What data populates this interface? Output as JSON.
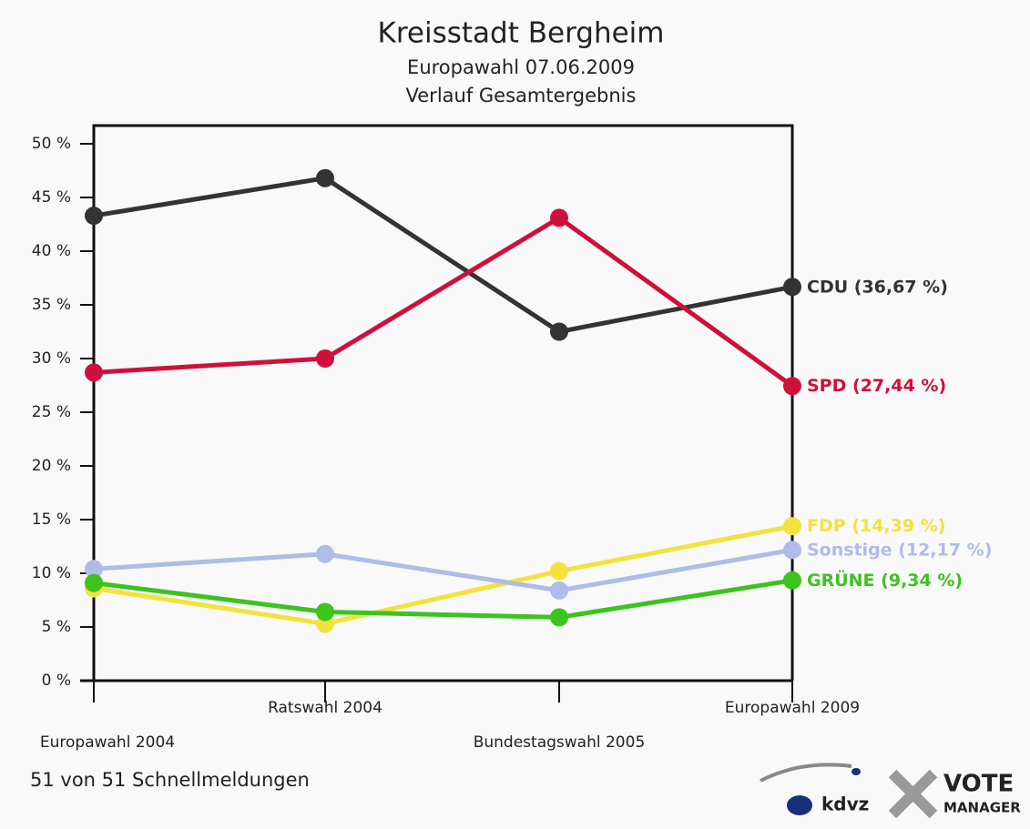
{
  "chart_data": {
    "type": "line",
    "title": "Kreisstadt Bergheim",
    "subtitle": "Europawahl 07.06.2009",
    "subtitle2": "Verlauf Gesamtergebnis",
    "categories": [
      "Europawahl 2004",
      "Ratswahl 2004",
      "Bundestagswahl 2005",
      "Europawahl 2009"
    ],
    "series": [
      {
        "name": "CDU",
        "color": "#333333",
        "values": [
          43.3,
          46.8,
          32.5,
          36.67
        ],
        "value_labels": [
          null,
          null,
          null,
          "(36,67 %)"
        ]
      },
      {
        "name": "SPD",
        "color": "#d0103a",
        "values": [
          28.7,
          30.0,
          43.1,
          27.44
        ],
        "value_labels": [
          null,
          null,
          null,
          "(27,44 %)"
        ]
      },
      {
        "name": "FDP",
        "color": "#f3e23c",
        "values": [
          8.6,
          5.3,
          10.2,
          14.39
        ],
        "value_labels": [
          null,
          null,
          null,
          "(14,39 %)"
        ]
      },
      {
        "name": "Sonstige",
        "color": "#aebde8",
        "values": [
          10.4,
          11.8,
          8.4,
          12.17
        ],
        "value_labels": [
          null,
          null,
          null,
          "(12,17 %)"
        ]
      },
      {
        "name": "GRÜNE",
        "color": "#3cc31e",
        "values": [
          9.1,
          6.4,
          5.9,
          9.34
        ],
        "value_labels": [
          null,
          null,
          null,
          "(9,34 %)"
        ]
      }
    ],
    "ylim": [
      0,
      50
    ],
    "yticks": [
      {
        "value": 0,
        "label": "0 %"
      },
      {
        "value": 5,
        "label": "5 %"
      },
      {
        "value": 10,
        "label": "10 %"
      },
      {
        "value": 15,
        "label": "15 %"
      },
      {
        "value": 20,
        "label": "20 %"
      },
      {
        "value": 25,
        "label": "25 %"
      },
      {
        "value": 30,
        "label": "30 %"
      },
      {
        "value": 35,
        "label": "35 %"
      },
      {
        "value": 40,
        "label": "40 %"
      },
      {
        "value": 45,
        "label": "45 %"
      },
      {
        "value": 50,
        "label": "50 %"
      }
    ],
    "footer": "51 von 51 Schnellmeldungen",
    "logos": [
      "kdvz",
      "VOTE",
      "MANAGER"
    ]
  }
}
